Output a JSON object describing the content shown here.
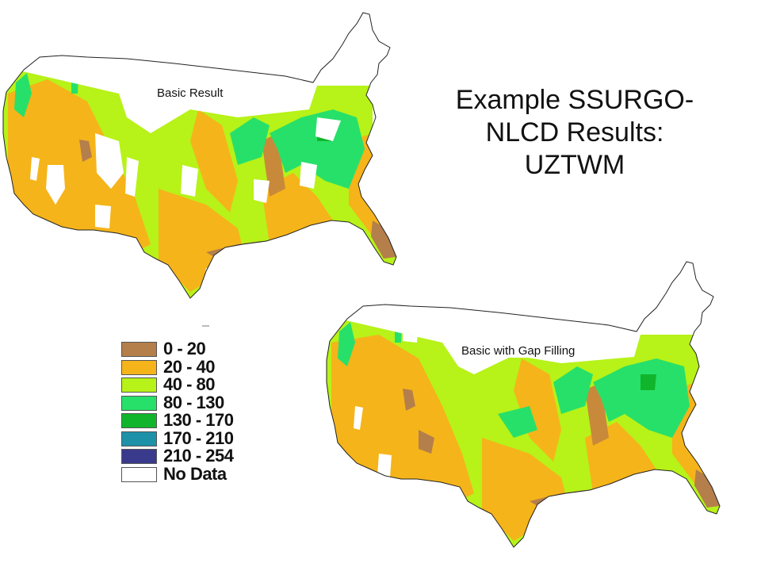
{
  "title": {
    "line1": "Example SSURGO-",
    "line2": "NLCD Results:",
    "line3": "UZTWM"
  },
  "maps": [
    {
      "label": "Basic Result"
    },
    {
      "label": "Basic with Gap Filling"
    }
  ],
  "legend": {
    "items": [
      {
        "label": "0 - 20",
        "color": "#b47f4a"
      },
      {
        "label": "20 - 40",
        "color": "#f5b41a"
      },
      {
        "label": "40 - 80",
        "color": "#b7f218"
      },
      {
        "label": "80 - 130",
        "color": "#27e06a"
      },
      {
        "label": "130 - 170",
        "color": "#11b52c"
      },
      {
        "label": "170 - 210",
        "color": "#1d91a8"
      },
      {
        "label": "210 - 254",
        "color": "#3a3a8c"
      },
      {
        "label": "No Data",
        "color": "#ffffff"
      }
    ]
  }
}
